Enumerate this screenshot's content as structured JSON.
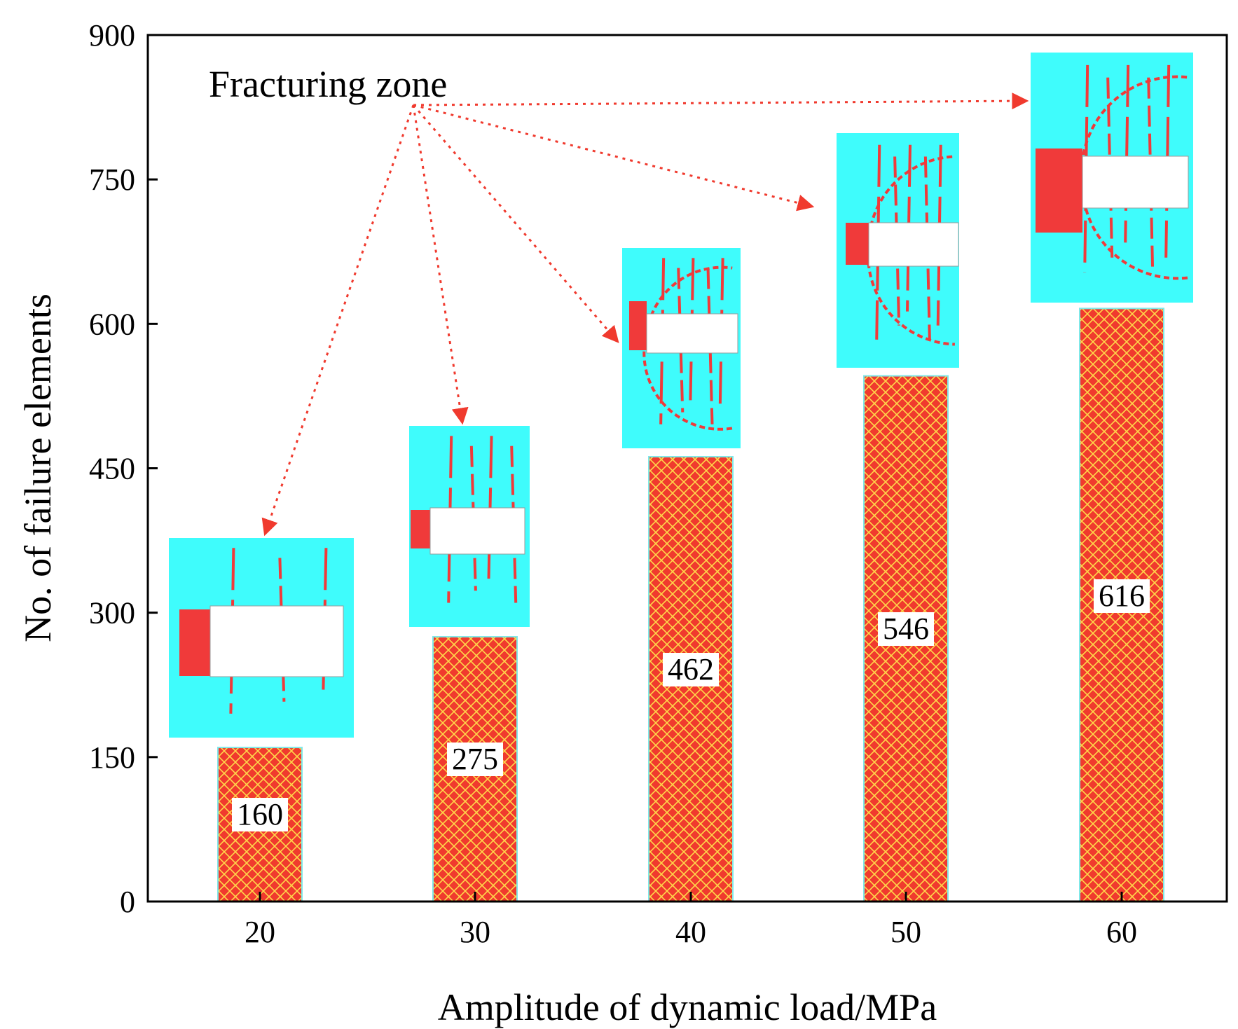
{
  "colors": {
    "bar_fill": "#f03a2e",
    "bar_hatch": "#ffd84a",
    "bar_edge": "#7fe8e8",
    "inset_bg": "#3ffcfc",
    "fracture": "#f03a3a",
    "arrow": "#f03a2e",
    "axis": "#000000"
  },
  "chart_data": {
    "type": "bar",
    "title": "",
    "xlabel": "Amplitude of dynamic load/MPa",
    "ylabel": "No. of failure elements",
    "categories": [
      "20",
      "30",
      "40",
      "50",
      "60"
    ],
    "values": [
      160,
      275,
      462,
      546,
      616
    ],
    "value_labels": [
      "160",
      "275",
      "462",
      "546",
      "616"
    ],
    "ylim": [
      0,
      900
    ],
    "yticks": [
      0,
      150,
      300,
      450,
      600,
      750,
      900
    ],
    "ytick_labels": [
      "0",
      "150",
      "300",
      "450",
      "600",
      "750",
      "900"
    ],
    "grid": false,
    "annotation": "Fracturing zone"
  }
}
